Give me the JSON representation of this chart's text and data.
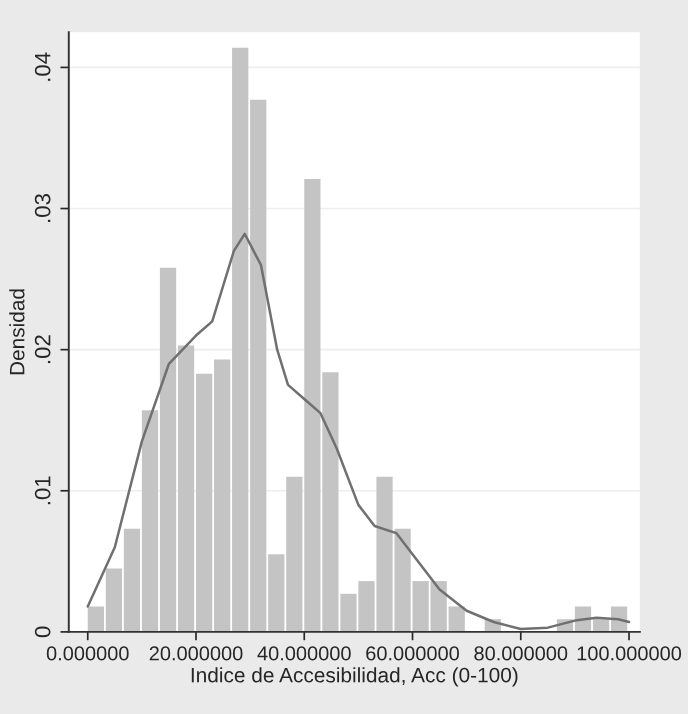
{
  "chart_data": {
    "type": "histogram",
    "xlabel": "Indice de Accesibilidad, Acc (0-100)",
    "ylabel": "Densidad",
    "xlim": [
      -3.5,
      102
    ],
    "ylim": [
      0,
      0.0425
    ],
    "xticks": [
      {
        "value": 0,
        "label": "0.000000"
      },
      {
        "value": 20,
        "label": "20.000000"
      },
      {
        "value": 40,
        "label": "40.000000"
      },
      {
        "value": 60,
        "label": "60.000000"
      },
      {
        "value": 80,
        "label": "80.000000"
      },
      {
        "value": 100,
        "label": "100.000000"
      }
    ],
    "yticks": [
      0,
      {
        "value": 0.01,
        "label": ".01"
      },
      {
        "value": 0.02,
        "label": ".02"
      },
      {
        "value": 0.03,
        "label": ".03"
      },
      {
        "value": 0.04,
        "label": ".04"
      }
    ],
    "grid": "y",
    "series": [
      {
        "color": "#c4c4c4",
        "bins": [
          0,
          3.333,
          6.667,
          10,
          13.333,
          16.667,
          20,
          23.333,
          26.667,
          30,
          33.333,
          36.667,
          40,
          43.333,
          46.667,
          50,
          53.333,
          56.667,
          60,
          63.333,
          66.667,
          70,
          73.333,
          76.667,
          80,
          83.333,
          86.667,
          90,
          93.333,
          96.667,
          100
        ],
        "values": [
          0.0018,
          0.0045,
          0.0073,
          0.0157,
          0.0258,
          0.0203,
          0.0183,
          0.0193,
          0.0414,
          0.0377,
          0.0055,
          0.011,
          0.0321,
          0.0184,
          0.0027,
          0.0036,
          0.011,
          0.0073,
          0.0036,
          0.0036,
          0.0018,
          0,
          0.0009,
          0,
          0,
          0,
          0.0009,
          0.0018,
          0.0009,
          0.0018
        ]
      },
      {
        "type": "line",
        "color": "#707070",
        "x": [
          0,
          5,
          10,
          15,
          20,
          23,
          27,
          29,
          32,
          35,
          37,
          40,
          43,
          46,
          50,
          53,
          57,
          60,
          65,
          70,
          75,
          80,
          85,
          90,
          94,
          98,
          100
        ],
        "values": [
          0.0018,
          0.006,
          0.0135,
          0.019,
          0.021,
          0.022,
          0.027,
          0.0282,
          0.026,
          0.02,
          0.0175,
          0.0165,
          0.0155,
          0.013,
          0.009,
          0.0075,
          0.007,
          0.0055,
          0.003,
          0.0015,
          0.0007,
          0.0002,
          0.0003,
          0.0008,
          0.001,
          0.0009,
          0.0007
        ]
      }
    ]
  }
}
